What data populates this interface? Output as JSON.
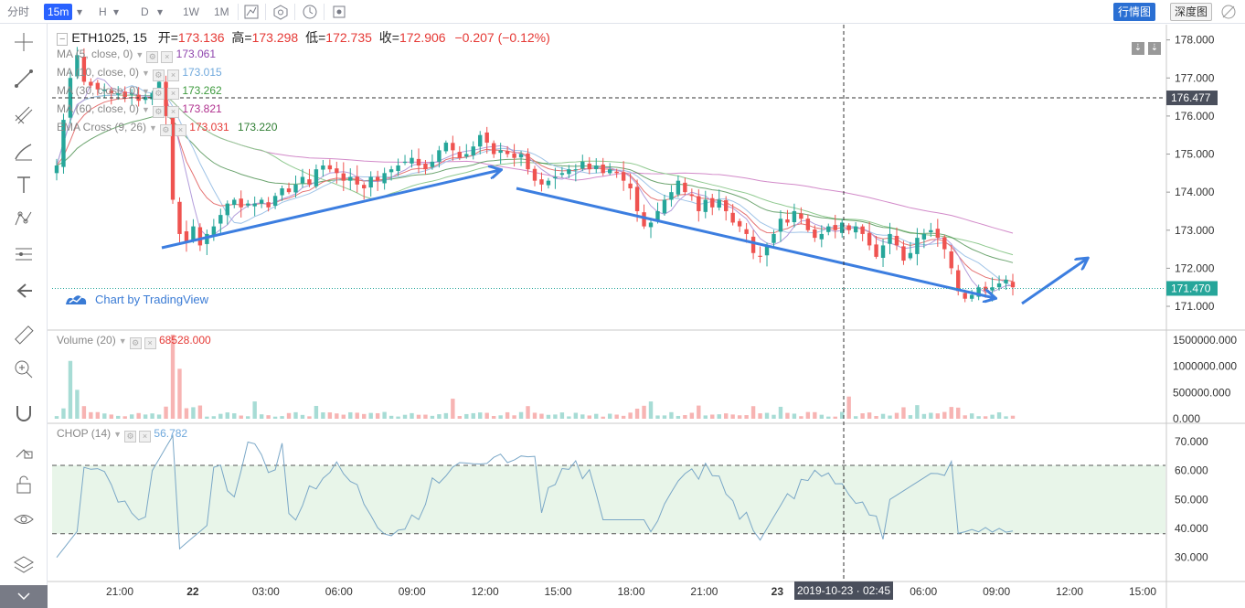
{
  "toolbar": {
    "items": [
      {
        "label": "分时",
        "active": false
      },
      {
        "label": "15m",
        "active": true
      },
      {
        "label": "H",
        "active": false
      },
      {
        "label": "D",
        "active": false
      },
      {
        "label": "1W",
        "active": false
      },
      {
        "label": "1M",
        "active": false
      }
    ],
    "right_buttons": [
      {
        "label": "行情图",
        "active": true
      },
      {
        "label": "深度图",
        "active": false
      }
    ]
  },
  "header": {
    "symbol": "ETH1025, 15",
    "open_label": "开=",
    "open": "173.136",
    "high_label": "高=",
    "high": "173.298",
    "low_label": "低=",
    "low": "172.735",
    "close_label": "收=",
    "close": "172.906",
    "change": "−0.207 (−0.12%)"
  },
  "indicators": [
    {
      "name": "MA (5, close, 0)",
      "value": "173.061",
      "color": "#8e44ad"
    },
    {
      "name": "MA (10, close, 0)",
      "value": "173.015",
      "color": "#6fa8dc"
    },
    {
      "name": "MA (30, close, 0)",
      "value": "173.262",
      "color": "#3c9a3c"
    },
    {
      "name": "MA (60, close, 0)",
      "value": "173.821",
      "color": "#b0308e"
    },
    {
      "name": "EMA Cross (9, 26)",
      "value": "173.031",
      "value2": "173.220",
      "color": "#e53935",
      "color2": "#2e7d32"
    }
  ],
  "volume_legend": {
    "name": "Volume (20)",
    "value": "68528.000"
  },
  "chop_legend": {
    "name": "CHOP (14)",
    "value": "56.782"
  },
  "watermark": "Chart by TradingView",
  "price_axis": {
    "ticks": [
      "178.000",
      "177.000",
      "176.000",
      "175.000",
      "174.000",
      "173.000",
      "172.000",
      "171.000"
    ],
    "crosshair_price": "176.477",
    "last_price": "171.470"
  },
  "volume_axis": {
    "ticks": [
      "1500000.000",
      "1000000.000",
      "500000.000",
      "0.000"
    ]
  },
  "chop_axis": {
    "ticks": [
      "70.000",
      "60.000",
      "50.000",
      "40.000",
      "30.000"
    ]
  },
  "time_axis": {
    "ticks": [
      "21:00",
      "22",
      "03:00",
      "06:00",
      "09:00",
      "12:00",
      "15:00",
      "18:00",
      "21:00",
      "23",
      "03:00",
      "06:00",
      "09:00",
      "12:00",
      "15:00"
    ],
    "crosshair_label": "2019-10-23 · 02:45"
  },
  "colors": {
    "up": "#26a69a",
    "down": "#ef5350",
    "accent": "#2962ff",
    "arrow": "#3c7ee0"
  },
  "chart_data": {
    "type": "candlestick",
    "symbol": "ETH1025",
    "interval": "15",
    "ylim": [
      170.4,
      178.4
    ],
    "candles_close_approx": [
      174.7,
      175.9,
      177.0,
      177.6,
      176.9,
      176.8,
      176.7,
      176.7,
      176.6,
      176.6,
      176.5,
      176.6,
      176.4,
      176.5,
      176.6,
      176.9,
      176.0,
      173.8,
      172.9,
      172.7,
      173.1,
      172.6,
      172.9,
      173.1,
      173.4,
      173.7,
      173.8,
      173.6,
      173.7,
      173.7,
      173.8,
      173.6,
      173.9,
      174.1,
      174.0,
      174.2,
      174.4,
      174.2,
      174.6,
      174.7,
      174.6,
      174.5,
      174.3,
      174.4,
      174.2,
      174.1,
      174.4,
      174.3,
      174.5,
      174.6,
      174.7,
      174.8,
      174.9,
      174.7,
      174.6,
      174.8,
      175.1,
      175.3,
      175.1,
      174.9,
      175.0,
      175.2,
      175.5,
      175.3,
      175.0,
      175.1,
      175.0,
      174.9,
      175.0,
      174.6,
      174.3,
      174.2,
      174.3,
      174.4,
      174.5,
      174.6,
      174.6,
      174.8,
      174.6,
      174.7,
      174.5,
      174.6,
      174.5,
      174.3,
      174.1,
      173.5,
      173.1,
      173.2,
      173.5,
      173.8,
      174.0,
      174.3,
      174.0,
      173.9,
      173.5,
      173.8,
      173.6,
      173.8,
      173.5,
      173.2,
      173.1,
      172.9,
      172.4,
      172.3,
      172.6,
      172.9,
      173.3,
      173.2,
      173.5,
      173.3,
      173.0,
      172.8,
      172.9,
      173.1,
      173.0,
      173.2,
      173.0,
      173.1,
      172.9,
      172.6,
      172.3,
      172.6,
      172.9,
      172.6,
      172.2,
      172.4,
      172.8,
      172.9,
      173.0,
      172.8,
      172.5,
      172.0,
      171.4,
      171.2,
      171.3,
      171.5,
      171.4,
      171.5,
      171.6,
      171.7,
      171.5
    ],
    "volume_peaks": [
      {
        "time": "21:45",
        "value": 1450000
      },
      {
        "time": "19:45",
        "value": 760000
      }
    ],
    "chop_bands": [
      38.2,
      61.8
    ],
    "chop_ylim": [
      22,
      76
    ],
    "volume_ylim": [
      0,
      1600000
    ],
    "annotations": [
      "up-trend arrow",
      "down-trend arrow",
      "down-trend arrow",
      "up-projection arrow"
    ],
    "crosshair": {
      "time": "2019-10-23 · 02:45",
      "price": "176.477"
    }
  }
}
